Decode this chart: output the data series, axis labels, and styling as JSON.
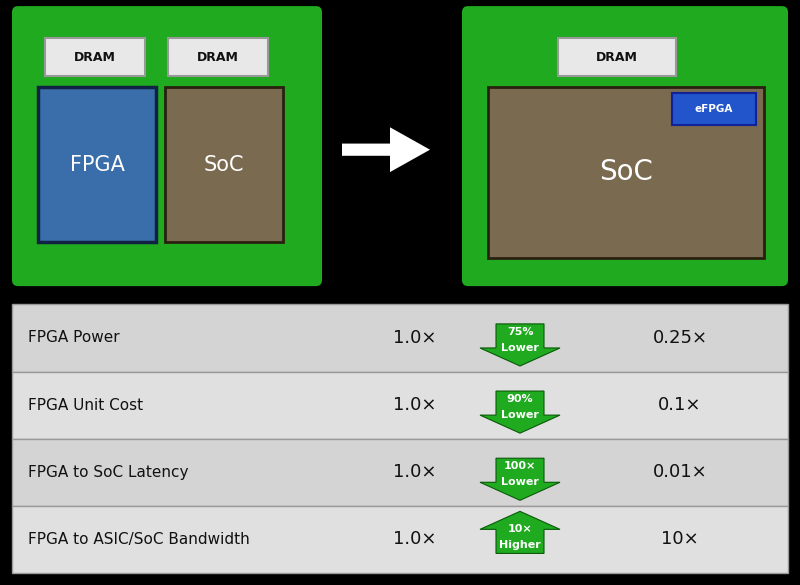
{
  "bg_color": "#000000",
  "green_color": "#1faa1f",
  "fpga_color": "#3a6eaa",
  "soc_color": "#7a6a50",
  "dram_color": "#e8e8e8",
  "dram_border": "#999999",
  "efpga_color": "#2255cc",
  "table_bg_even": "#d4d4d4",
  "table_bg_odd": "#e0e0e0",
  "table_border": "#999999",
  "rows": [
    {
      "label": "FPGA Power",
      "left": "1.0×",
      "arrow": "down",
      "pct": "75%",
      "desc": "Lower",
      "right": "0.25×"
    },
    {
      "label": "FPGA Unit Cost",
      "left": "1.0×",
      "arrow": "down",
      "pct": "90%",
      "desc": "Lower",
      "right": "0.1×"
    },
    {
      "label": "FPGA to SoC Latency",
      "left": "1.0×",
      "arrow": "down",
      "pct": "100×",
      "desc": "Lower",
      "right": "0.01×"
    },
    {
      "label": "FPGA to ASIC/SoC Bandwidth",
      "left": "1.0×",
      "arrow": "up",
      "pct": "10×",
      "desc": "Higher",
      "right": "10×"
    }
  ]
}
